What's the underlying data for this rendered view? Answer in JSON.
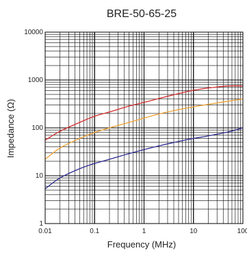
{
  "chart_data": {
    "type": "line",
    "title": "BRE-50-65-25",
    "xlabel": "Frequency (MHz)",
    "ylabel": "Impedance (Ω)",
    "x_scale": "log",
    "y_scale": "log",
    "xlim": [
      0.01,
      100
    ],
    "ylim": [
      1,
      10000
    ],
    "x_ticks": [
      {
        "value": 0.01,
        "label": "0.01"
      },
      {
        "value": 0.1,
        "label": "0.1"
      },
      {
        "value": 1,
        "label": "1"
      },
      {
        "value": 10,
        "label": "10"
      },
      {
        "value": 100,
        "label": "100"
      }
    ],
    "y_ticks": [
      {
        "value": 1,
        "label": "1"
      },
      {
        "value": 10,
        "label": "10"
      },
      {
        "value": 100,
        "label": "100"
      },
      {
        "value": 1000,
        "label": "1000"
      },
      {
        "value": 10000,
        "label": "10000"
      }
    ],
    "grid": true,
    "series": [
      {
        "color": "#d42a2a",
        "points": [
          [
            0.01,
            55
          ],
          [
            0.02,
            85
          ],
          [
            0.05,
            130
          ],
          [
            0.1,
            175
          ],
          [
            0.2,
            215
          ],
          [
            0.5,
            285
          ],
          [
            1,
            340
          ],
          [
            2,
            410
          ],
          [
            5,
            520
          ],
          [
            10,
            610
          ],
          [
            20,
            680
          ],
          [
            50,
            750
          ],
          [
            100,
            750
          ]
        ]
      },
      {
        "color": "#f0a030",
        "points": [
          [
            0.01,
            22
          ],
          [
            0.02,
            38
          ],
          [
            0.05,
            60
          ],
          [
            0.1,
            80
          ],
          [
            0.2,
            100
          ],
          [
            0.5,
            130
          ],
          [
            1,
            160
          ],
          [
            2,
            195
          ],
          [
            5,
            240
          ],
          [
            10,
            275
          ],
          [
            20,
            310
          ],
          [
            50,
            360
          ],
          [
            100,
            400
          ]
        ]
      },
      {
        "color": "#2a2a90",
        "points": [
          [
            0.01,
            5.3
          ],
          [
            0.02,
            9
          ],
          [
            0.05,
            14
          ],
          [
            0.1,
            18
          ],
          [
            0.2,
            22
          ],
          [
            0.5,
            29
          ],
          [
            1,
            35
          ],
          [
            2,
            42
          ],
          [
            5,
            52
          ],
          [
            10,
            60
          ],
          [
            20,
            68
          ],
          [
            50,
            82
          ],
          [
            100,
            100
          ]
        ]
      }
    ]
  }
}
